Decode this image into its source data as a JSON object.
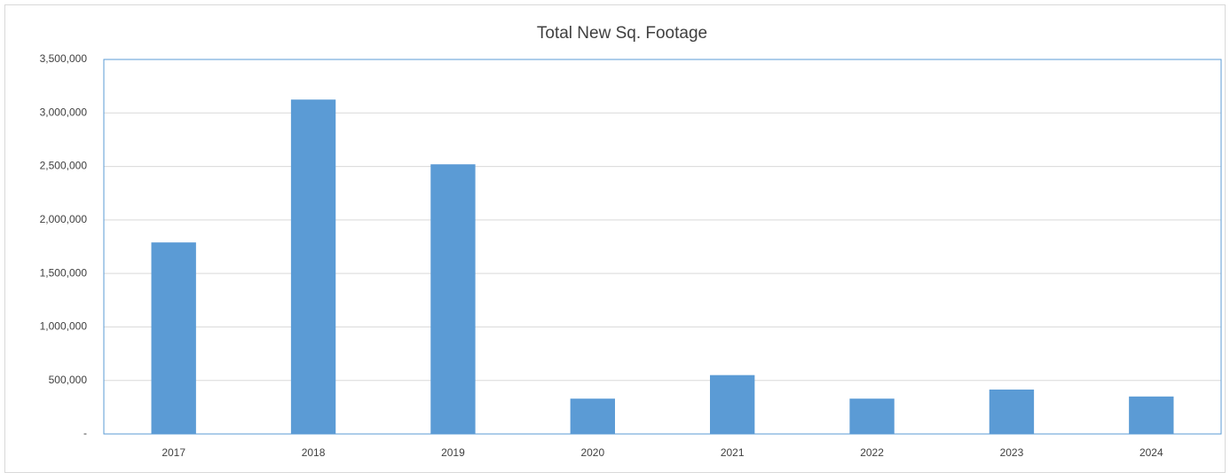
{
  "chart_data": {
    "type": "bar",
    "title": "Total New Sq. Footage",
    "categories": [
      "2017",
      "2018",
      "2019",
      "2020",
      "2021",
      "2022",
      "2023",
      "2024"
    ],
    "values": [
      1790000,
      3125000,
      2520000,
      330000,
      550000,
      330000,
      415000,
      350000
    ],
    "color": "#5b9bd5",
    "ylim": [
      0,
      3500000
    ],
    "yticks": [
      {
        "value": 0,
        "label": "-"
      },
      {
        "value": 500000,
        "label": "500,000"
      },
      {
        "value": 1000000,
        "label": "1,000,000"
      },
      {
        "value": 1500000,
        "label": "1,500,000"
      },
      {
        "value": 2000000,
        "label": "2,000,000"
      },
      {
        "value": 2500000,
        "label": "2,500,000"
      },
      {
        "value": 3000000,
        "label": "3,000,000"
      },
      {
        "value": 3500000,
        "label": "3,500,000"
      }
    ],
    "grid": true
  }
}
